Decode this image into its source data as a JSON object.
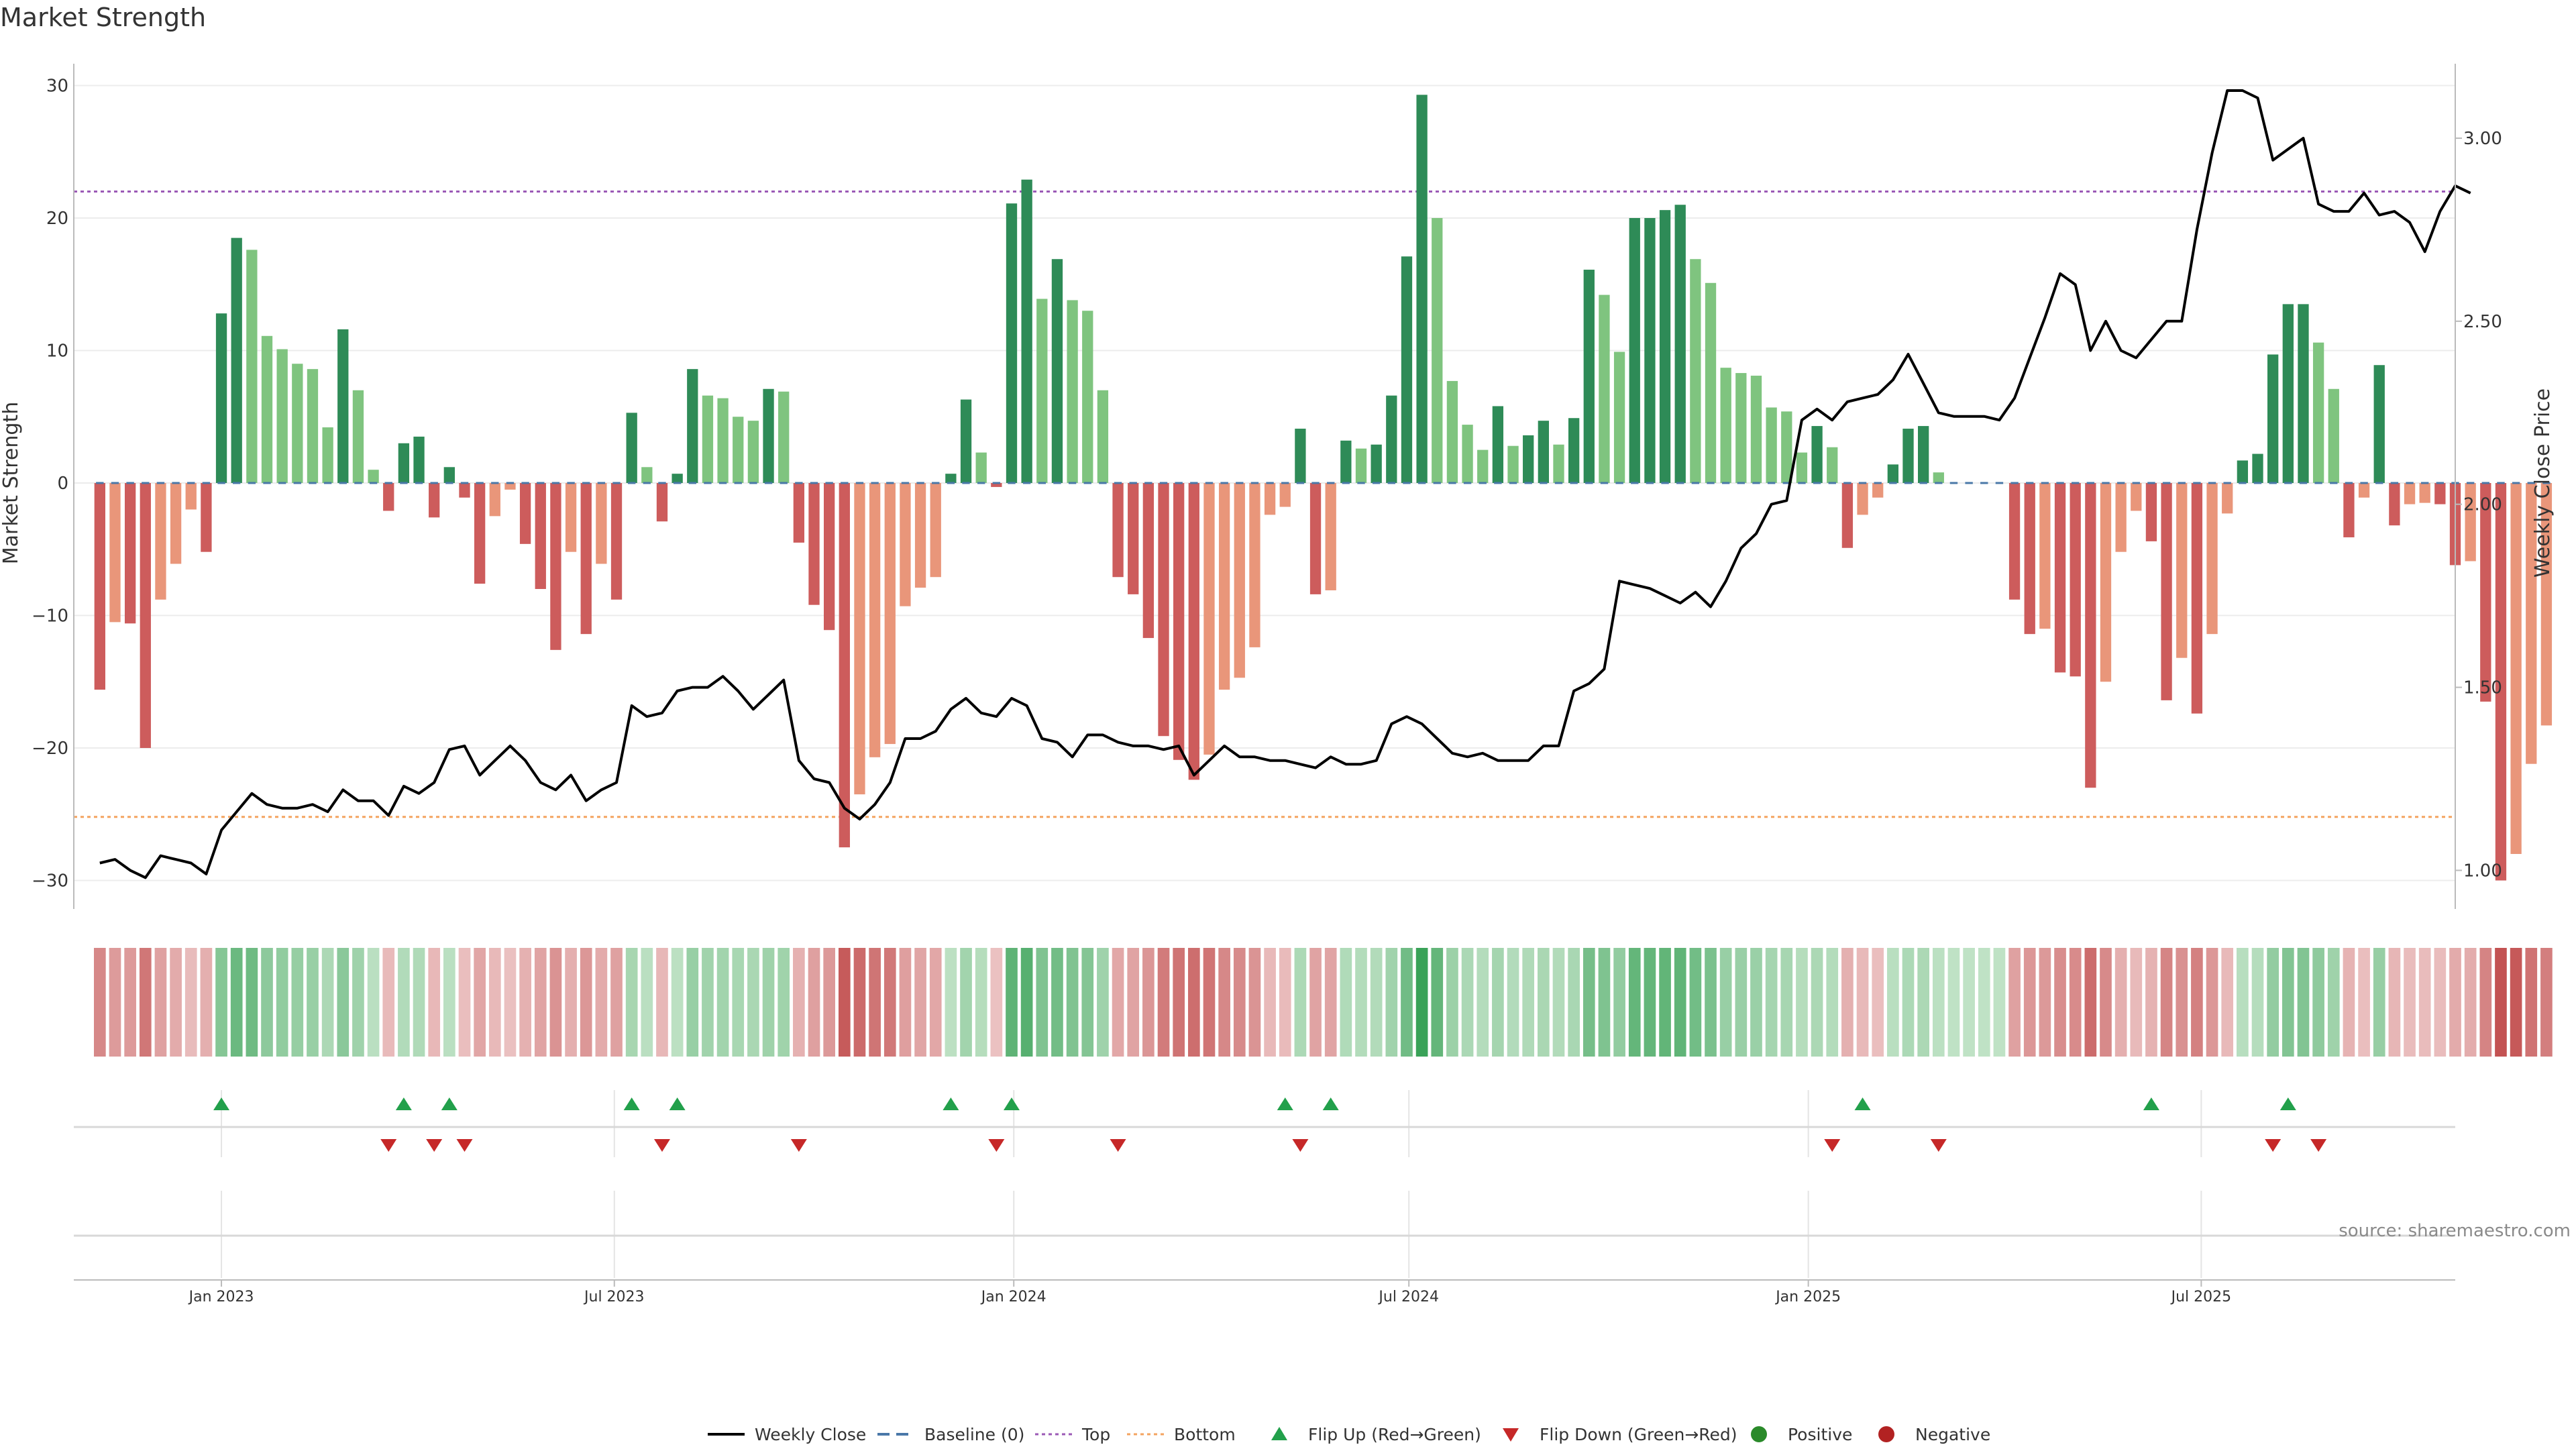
{
  "title": "Market Strength",
  "source": "source: sharemaestro.com",
  "chart_data": {
    "type": "bar",
    "title": "Market Strength",
    "ylabel": "Market Strength",
    "y2label": "Weekly Close Price",
    "ylim": [
      -32,
      31
    ],
    "y2lim": [
      0.9,
      3.18
    ],
    "yticks": [
      -30,
      -20,
      -10,
      0,
      10,
      20,
      30
    ],
    "ytick_labels": [
      "−30",
      "−20",
      "−10",
      "0",
      "10",
      "20",
      "30"
    ],
    "y2ticks": [
      1.0,
      1.5,
      2.0,
      2.5,
      3.0
    ],
    "y2tick_labels": [
      "1.00",
      "1.50",
      "2.00",
      "2.50",
      "3.00"
    ],
    "xlim": [
      "2022-10-25",
      "2025-10-26"
    ],
    "first_week": "2022-11-06",
    "x_ticks": [
      {
        "date": "2023-01-01",
        "label": "Jan 2023"
      },
      {
        "date": "2023-07-01",
        "label": "Jul 2023"
      },
      {
        "date": "2024-01-01",
        "label": "Jan 2024"
      },
      {
        "date": "2024-07-01",
        "label": "Jul 2024"
      },
      {
        "date": "2025-01-01",
        "label": "Jan 2025"
      },
      {
        "date": "2025-07-01",
        "label": "Jul 2025"
      }
    ],
    "top_level": 22,
    "bottom_level": -25.2,
    "strength": [
      -15.6,
      -10.5,
      -10.6,
      -20,
      -8.8,
      -6.1,
      -2,
      -5.2,
      12.8,
      18.5,
      17.6,
      11.1,
      10.1,
      9,
      8.6,
      4.2,
      11.6,
      7,
      1,
      -2.1,
      3,
      3.5,
      -2.6,
      1.2,
      -1.1,
      -7.6,
      -2.5,
      -0.5,
      -4.6,
      -8,
      -12.6,
      -5.2,
      -11.4,
      -6.1,
      -8.8,
      5.3,
      1.2,
      -2.9,
      0.7,
      8.6,
      6.6,
      6.4,
      5,
      4.7,
      7.1,
      6.9,
      -4.5,
      -9.2,
      -11.1,
      -27.5,
      -23.5,
      -20.7,
      -19.7,
      -9.3,
      -7.9,
      -7.1,
      0.7,
      6.3,
      2.3,
      -0.3,
      21.1,
      22.9,
      13.9,
      16.9,
      13.8,
      13,
      7,
      -7.1,
      -8.4,
      -11.7,
      -19.1,
      -20.9,
      -22.4,
      -20.5,
      -15.6,
      -14.7,
      -12.4,
      -2.4,
      -1.8,
      4.1,
      -8.4,
      -8.1,
      3.2,
      2.6,
      2.9,
      6.6,
      17.1,
      29.3,
      20,
      7.7,
      4.4,
      2.5,
      5.8,
      2.8,
      3.6,
      4.7,
      2.9,
      4.9,
      16.1,
      14.2,
      9.9,
      20,
      20,
      20.6,
      21,
      16.9,
      15.1,
      8.7,
      8.3,
      8.1,
      5.7,
      5.4,
      2.3,
      4.3,
      2.7,
      -4.9,
      -2.4,
      -1.1,
      1.4,
      4.1,
      4.3,
      0.8,
      0,
      0,
      0,
      0,
      -8.8,
      -11.4,
      -11,
      -14.3,
      -14.6,
      -23,
      -15,
      -5.2,
      -2.1,
      -4.4,
      -16.4,
      -13.2,
      -17.4,
      -11.4,
      -2.3,
      1.7,
      2.2,
      9.7,
      13.5,
      13.5,
      10.6,
      7.1,
      -4.1,
      -1.1,
      8.9,
      -3.2,
      -1.6,
      -1.5,
      -1.6,
      -6.2,
      -5.9,
      -16.5,
      -30,
      -28,
      -21.2,
      -18.3
    ],
    "weekly_close": [
      1.02,
      1.03,
      1.0,
      0.98,
      1.04,
      1.03,
      1.02,
      0.99,
      1.11,
      1.16,
      1.21,
      1.18,
      1.17,
      1.17,
      1.18,
      1.16,
      1.22,
      1.19,
      1.19,
      1.15,
      1.23,
      1.21,
      1.24,
      1.33,
      1.34,
      1.26,
      1.3,
      1.34,
      1.3,
      1.24,
      1.22,
      1.26,
      1.19,
      1.22,
      1.24,
      1.45,
      1.42,
      1.43,
      1.49,
      1.5,
      1.5,
      1.53,
      1.49,
      1.44,
      1.48,
      1.52,
      1.3,
      1.25,
      1.24,
      1.17,
      1.14,
      1.18,
      1.24,
      1.36,
      1.36,
      1.38,
      1.44,
      1.47,
      1.43,
      1.42,
      1.47,
      1.45,
      1.36,
      1.35,
      1.31,
      1.37,
      1.37,
      1.35,
      1.34,
      1.34,
      1.33,
      1.34,
      1.26,
      1.3,
      1.34,
      1.31,
      1.31,
      1.3,
      1.3,
      1.29,
      1.28,
      1.31,
      1.29,
      1.29,
      1.3,
      1.4,
      1.42,
      1.4,
      1.36,
      1.32,
      1.31,
      1.32,
      1.3,
      1.3,
      1.3,
      1.34,
      1.34,
      1.49,
      1.51,
      1.55,
      1.79,
      1.78,
      1.77,
      1.75,
      1.73,
      1.76,
      1.72,
      1.79,
      1.88,
      1.92,
      2.0,
      2.01,
      2.23,
      2.26,
      2.23,
      2.28,
      2.29,
      2.3,
      2.34,
      2.41,
      2.33,
      2.25,
      2.24,
      2.24,
      2.24,
      2.23,
      2.29,
      2.4,
      2.51,
      2.63,
      2.6,
      2.42,
      2.5,
      2.42,
      2.4,
      2.45,
      2.5,
      2.5,
      2.75,
      2.96,
      3.13,
      3.13,
      3.11,
      2.94,
      2.97,
      3.0,
      2.82,
      2.8,
      2.8,
      2.85,
      2.79,
      2.8,
      2.77,
      2.69,
      2.8,
      2.87,
      2.85
    ],
    "flip_up_weeks": [
      8,
      20,
      23,
      35,
      38,
      56,
      60,
      78,
      81,
      116,
      135,
      144
    ],
    "flip_down_weeks": [
      19,
      22,
      24,
      37,
      46,
      59,
      67,
      79,
      114,
      121,
      143,
      146
    ],
    "legend": [
      {
        "key": "weekly_close",
        "label": "Weekly Close"
      },
      {
        "key": "baseline",
        "label": "Baseline (0)"
      },
      {
        "key": "top",
        "label": "Top"
      },
      {
        "key": "bottom",
        "label": "Bottom"
      },
      {
        "key": "flip_up",
        "label": "Flip Up (Red→Green)"
      },
      {
        "key": "flip_down",
        "label": "Flip Down (Green→Red)"
      },
      {
        "key": "positive",
        "label": "Positive"
      },
      {
        "key": "negative",
        "label": "Negative"
      }
    ],
    "legend_position": "bottom-center",
    "grid": true
  },
  "colors": {
    "positive_strong": "#2e8b57",
    "positive_light": "#7fc47f",
    "negative_strong": "#cd5c5c",
    "negative_light": "#e9967a",
    "flip_up": "#22a04b",
    "flip_down": "#c62828",
    "top_line": "#9b59b6",
    "bottom_line": "#f4a460",
    "baseline": "#4a78a8",
    "price_line": "#000000",
    "positive_dot": "#2a8a2a",
    "negative_dot": "#b22222"
  }
}
